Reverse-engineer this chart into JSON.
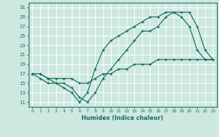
{
  "xlabel": "Humidex (Indice chaleur)",
  "bg_color": "#cce8e0",
  "line_color": "#1a6b5a",
  "grid_color": "#ffffff",
  "xlim": [
    -0.5,
    23.5
  ],
  "ylim": [
    10,
    32
  ],
  "xticks": [
    0,
    1,
    2,
    3,
    4,
    5,
    6,
    7,
    8,
    9,
    10,
    11,
    12,
    13,
    14,
    15,
    16,
    17,
    18,
    19,
    20,
    21,
    22,
    23
  ],
  "yticks": [
    11,
    13,
    15,
    17,
    19,
    21,
    23,
    25,
    27,
    29,
    31
  ],
  "curve1_x": [
    0,
    1,
    2,
    3,
    4,
    5,
    6,
    7,
    8,
    9,
    10,
    11,
    12,
    13,
    14,
    15,
    16,
    17,
    18,
    19,
    20,
    21,
    22,
    23
  ],
  "curve1_y": [
    17,
    17,
    16,
    15,
    15,
    14,
    12,
    11,
    13,
    16,
    18,
    20,
    22,
    24,
    26,
    26,
    27,
    29,
    30,
    30,
    30,
    27,
    22,
    20
  ],
  "curve2_x": [
    0,
    1,
    2,
    3,
    4,
    5,
    6,
    7,
    8,
    9,
    10,
    11,
    12,
    13,
    14,
    15,
    16,
    17,
    18,
    19,
    20,
    21,
    22,
    23
  ],
  "curve2_y": [
    17,
    16,
    15,
    15,
    14,
    13,
    11,
    13,
    18,
    22,
    24,
    25,
    26,
    27,
    28,
    29,
    29,
    30,
    30,
    29,
    27,
    22,
    20,
    20
  ],
  "curve3_x": [
    0,
    1,
    2,
    3,
    4,
    5,
    6,
    7,
    8,
    9,
    10,
    11,
    12,
    13,
    14,
    15,
    16,
    17,
    18,
    19,
    20,
    21,
    22,
    23
  ],
  "curve3_y": [
    17,
    17,
    16,
    16,
    16,
    16,
    15,
    15,
    16,
    17,
    17,
    18,
    18,
    19,
    19,
    19,
    20,
    20,
    20,
    20,
    20,
    20,
    20,
    20
  ]
}
